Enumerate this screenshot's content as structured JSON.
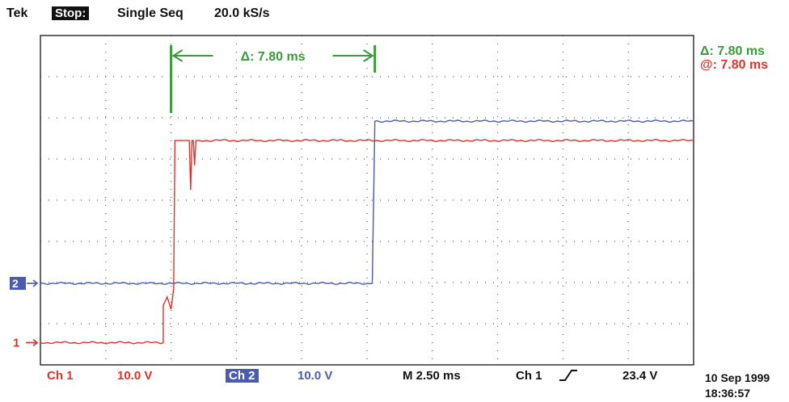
{
  "header": {
    "brand": "Tek",
    "state": "Stop:",
    "mode": "Single Seq",
    "rate": "20.0 kS/s"
  },
  "cursor": {
    "delta_label": "Δ: 7.80 ms",
    "readout_delta": "Δ: 7.80 ms",
    "readout_at": "@: 7.80 ms",
    "start_ms": 0,
    "end_ms": 7.8,
    "color": "#3a9a3a"
  },
  "channels": {
    "ch1": {
      "marker": "1",
      "label": "Ch 1",
      "scale": "10.0 V",
      "color": "#e0302a"
    },
    "ch2": {
      "marker": "2",
      "label": "Ch 2",
      "scale": "10.0 V",
      "color": "#4a5bb0"
    }
  },
  "footer": {
    "timebase": "M 2.50 ms",
    "trigger_source": "Ch 1",
    "trigger_level": "23.4 V",
    "date": "10 Sep 1999",
    "time": "18:36:57"
  },
  "chart_data": {
    "type": "line",
    "x_unit": "ms",
    "y_unit": "V",
    "xlim": [
      -5,
      20
    ],
    "ylim": [
      -40,
      40
    ],
    "grid": true,
    "series": [
      {
        "name": "Ch 1",
        "color": "#e0302a",
        "x": [
          -5,
          -0.3,
          -0.3,
          -0.15,
          0,
          0.1,
          0.15,
          0.4,
          0.7,
          0.75,
          0.8,
          0.85,
          0.9,
          0.95,
          1.1,
          20
        ],
        "y": [
          -34.6,
          -34.6,
          -25.5,
          -23.5,
          -26.5,
          -21.5,
          14.5,
          14.5,
          14.5,
          2.5,
          14.5,
          14.5,
          8.5,
          14.5,
          14.5,
          14.5
        ]
      },
      {
        "name": "Ch 2",
        "color": "#4a5bb0",
        "x": [
          -5,
          7.7,
          7.8,
          20
        ],
        "y": [
          -20.2,
          -20.2,
          19.2,
          19.2
        ]
      }
    ]
  }
}
